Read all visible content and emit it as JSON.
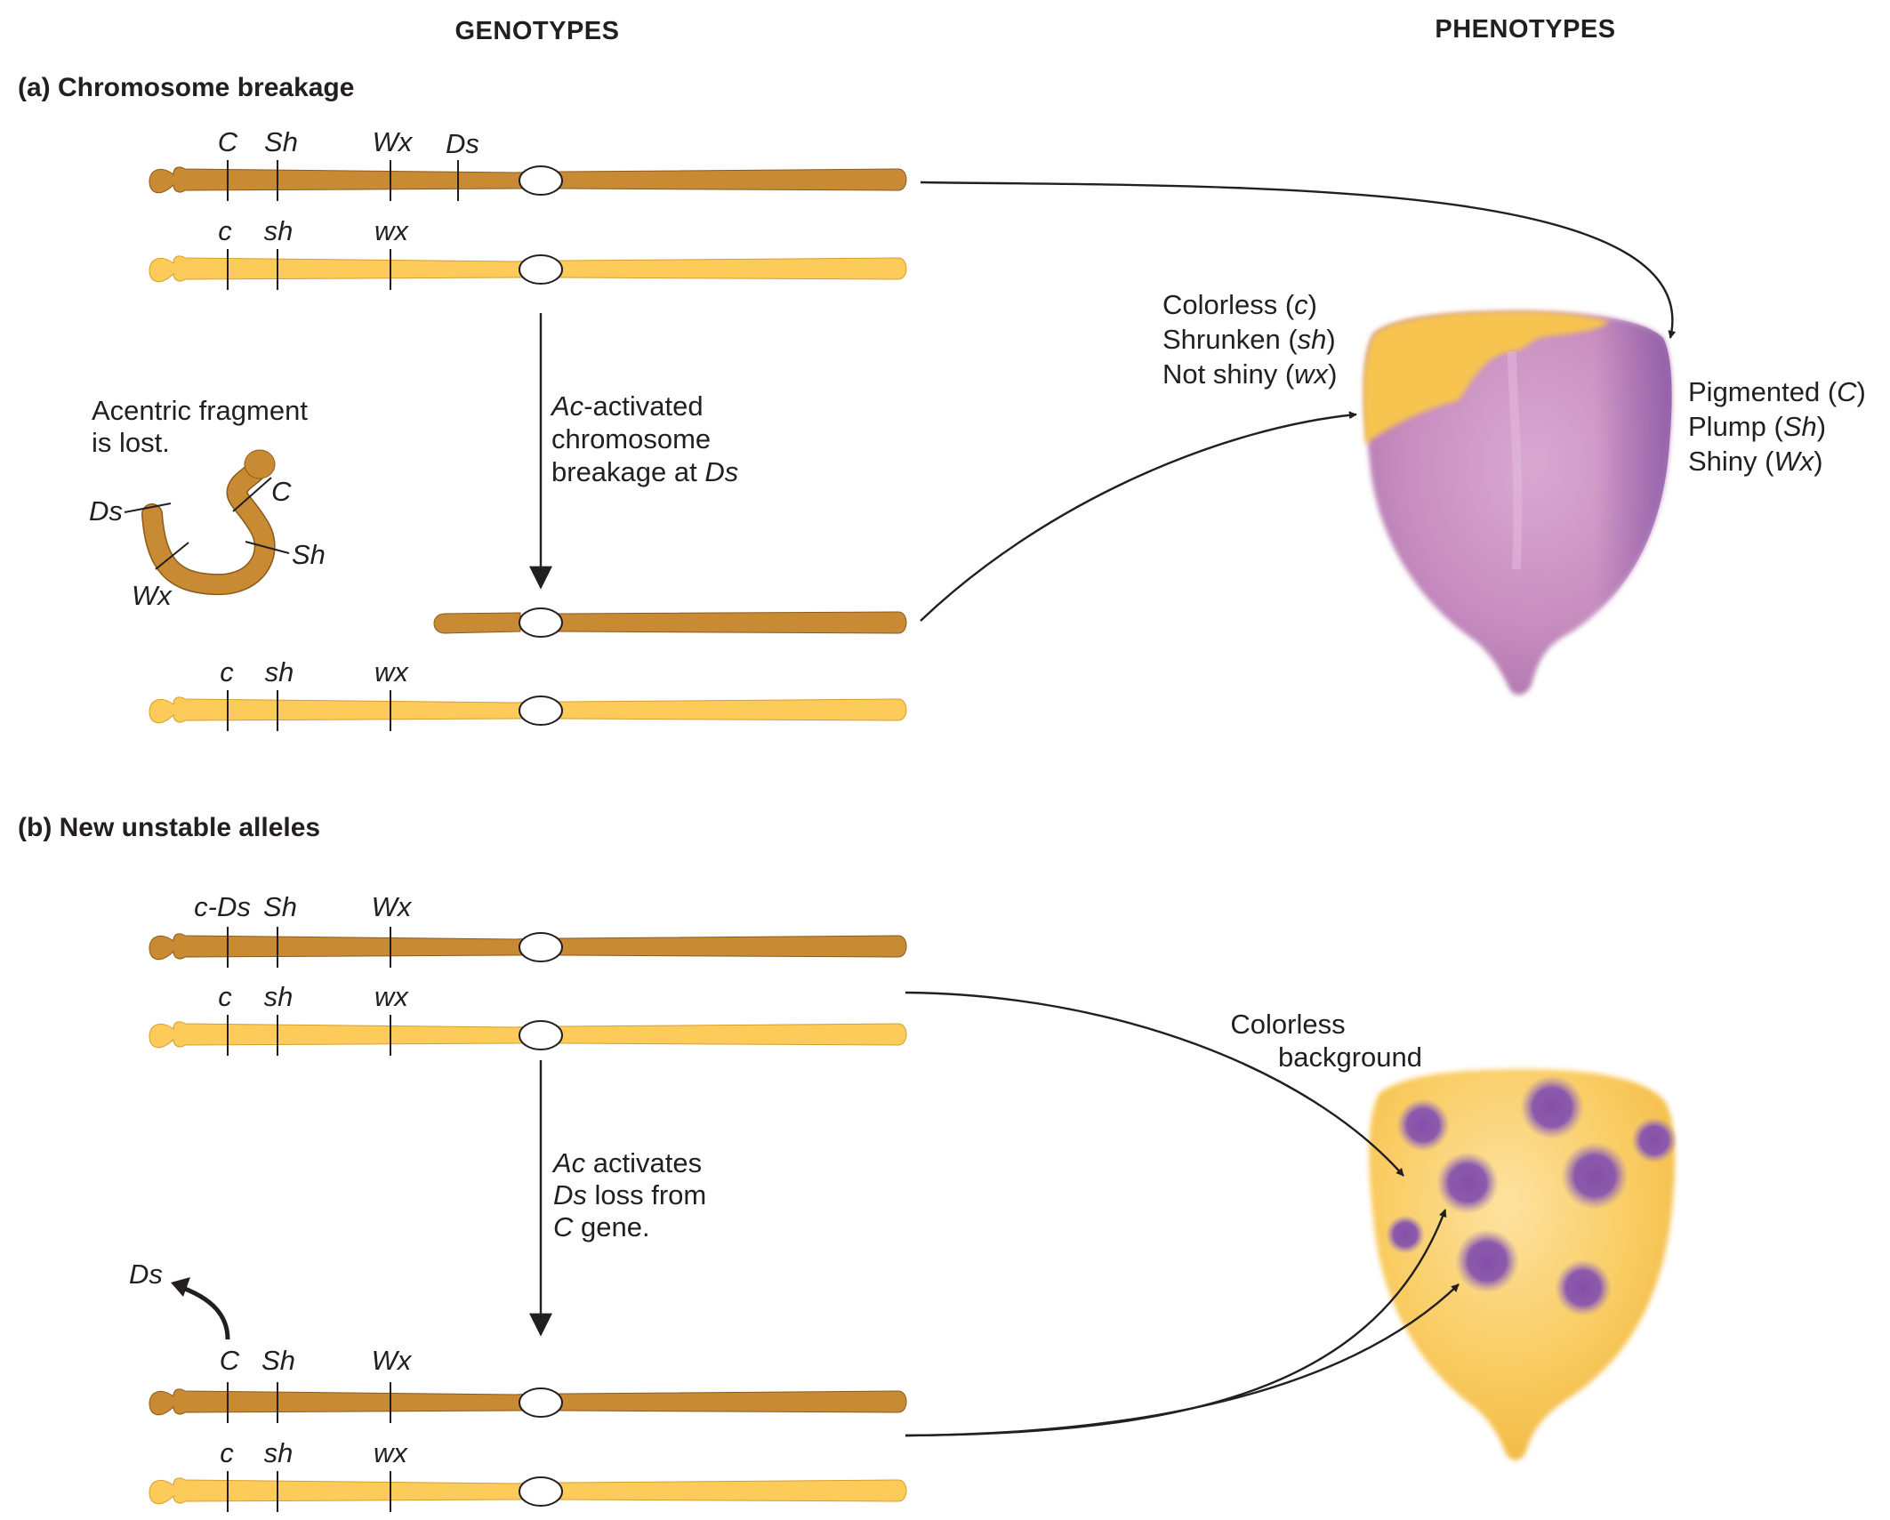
{
  "headers": {
    "genotypes": "GENOTYPES",
    "phenotypes": "PHENOTYPES"
  },
  "section_a": {
    "title": "(a) Chromosome breakage",
    "chrom1_genes": [
      "C",
      "Sh",
      "Wx",
      "Ds"
    ],
    "chrom2_genes": [
      "c",
      "sh",
      "wx"
    ],
    "chrom4_genes": [
      "c",
      "sh",
      "wx"
    ],
    "fragment_label_1": "Acentric fragment",
    "fragment_label_2": "is lost.",
    "fragment_genes": [
      "Ds",
      "C",
      "Sh",
      "Wx"
    ],
    "process_1_italic": "Ac",
    "process_1_rest": "-activated",
    "process_2": "chromosome",
    "process_3_prefix": "breakage at ",
    "process_3_italic": "Ds",
    "colorless_pheno": [
      {
        "word": "Colorless",
        "allele": "c"
      },
      {
        "word": "Shrunken",
        "allele": "sh"
      },
      {
        "word": "Not shiny",
        "allele": "wx"
      }
    ],
    "pigmented_pheno": [
      {
        "word": "Pigmented",
        "allele": "C"
      },
      {
        "word": "Plump",
        "allele": "Sh"
      },
      {
        "word": "Shiny",
        "allele": "Wx"
      }
    ]
  },
  "section_b": {
    "title": "(b) New unstable alleles",
    "chrom1_genes": [
      "c-Ds",
      "Sh",
      "Wx"
    ],
    "chrom2_genes": [
      "c",
      "sh",
      "wx"
    ],
    "chrom3_genes": [
      "C",
      "Sh",
      "Wx"
    ],
    "chrom4_genes": [
      "c",
      "sh",
      "wx"
    ],
    "excised_label": "Ds",
    "process_1_italic": "Ac",
    "process_1_rest": " activates",
    "process_2_italic": "Ds",
    "process_2_rest": " loss from",
    "process_3_italic": "C",
    "process_3_rest": " gene.",
    "background_1": "Colorless",
    "background_2": "background"
  },
  "colors": {
    "dominant_chromosome": "#c98a34",
    "recessive_chromosome": "#fccb5a",
    "purple_pigment": "#b27fb8",
    "kernel_yellow": "#f7c34a",
    "spot_purple": "#8a5aa8"
  }
}
